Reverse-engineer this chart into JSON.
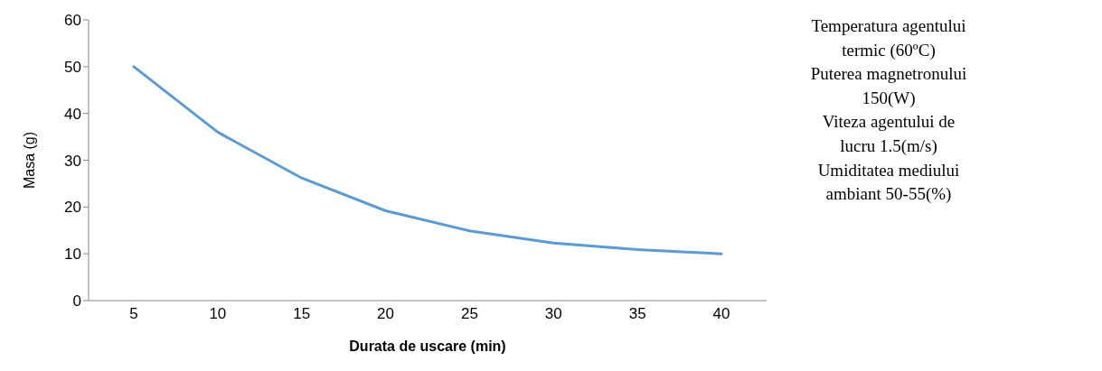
{
  "chart_data": {
    "type": "line",
    "xlabel": "Durata de uscare (min)",
    "ylabel": "Masa (g)",
    "categories": [
      "5",
      "10",
      "15",
      "20",
      "25",
      "30",
      "35",
      "40"
    ],
    "series": [
      {
        "color": "#5b9bd5",
        "values": [
          50,
          36,
          26.2,
          19.2,
          14.9,
          12.3,
          10.9,
          10
        ]
      }
    ],
    "ylim": [
      0,
      60
    ],
    "yticks": [
      0,
      10,
      20,
      30,
      40,
      50,
      60
    ],
    "grid": false,
    "legend": false,
    "marker": "none",
    "line_style": "solid",
    "annotations": [
      "Temperatura agentului termic (60ºC)",
      "Puterea magnetronului 150(W)",
      "Viteza agentului de lucru 1.5(m/s)",
      "Umiditatea mediului ambiant 50-55(%)"
    ]
  }
}
